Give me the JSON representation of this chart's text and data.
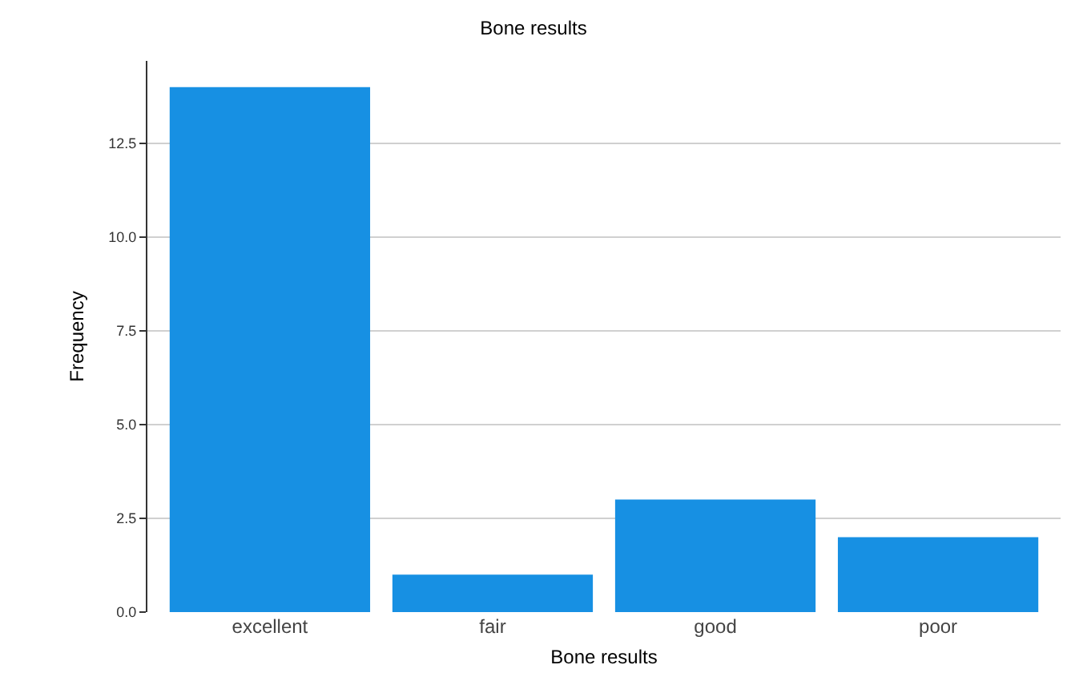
{
  "chart_data": {
    "type": "bar",
    "title": "Bone results",
    "xlabel": "Bone results",
    "ylabel": "Frequency",
    "categories": [
      "excellent",
      "fair",
      "good",
      "poor"
    ],
    "values": [
      14,
      1,
      3,
      2
    ],
    "color": "#1790e3",
    "ylim": [
      0,
      14.7
    ],
    "yticks": [
      {
        "value": 0,
        "label": "0.0"
      },
      2.5,
      {
        "value": 5,
        "label": "5.0"
      },
      7.5,
      {
        "value": 10,
        "label": "10.0"
      },
      12.5
    ],
    "grid": "y",
    "legend": false
  }
}
